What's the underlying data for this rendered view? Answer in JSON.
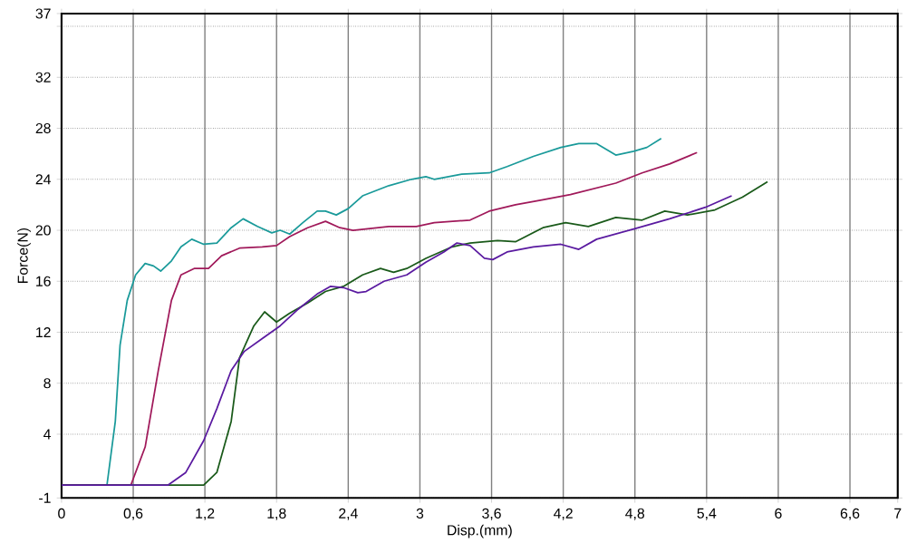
{
  "chart_data": {
    "type": "line",
    "xlabel": "Disp.(mm)",
    "ylabel": "Force(N)",
    "xlim": [
      0,
      7
    ],
    "ylim": [
      -1,
      37
    ],
    "xticks": [
      0,
      {
        "value": 0.6,
        "label": "0,6"
      },
      {
        "value": 1.2,
        "label": "1,2"
      },
      {
        "value": 1.8,
        "label": "1,8"
      },
      {
        "value": 2.4,
        "label": "2,4"
      },
      3,
      {
        "value": 3.6,
        "label": "3,6"
      },
      {
        "value": 4.2,
        "label": "4,2"
      },
      {
        "value": 4.8,
        "label": "4,8"
      },
      {
        "value": 5.4,
        "label": "5,4"
      },
      6,
      {
        "value": 6.6,
        "label": "6,6"
      },
      7
    ],
    "yticks": [
      -1,
      4,
      8,
      12,
      16,
      20,
      24,
      28,
      32,
      {
        "value": 36,
        "label": null
      },
      37
    ],
    "grid": true,
    "series": [
      {
        "color": "#1a9a9a",
        "x": [
          0,
          0.38,
          0.45,
          0.49,
          0.55,
          0.62,
          0.7,
          0.77,
          0.83,
          0.92,
          1.0,
          1.09,
          1.19,
          1.3,
          1.42,
          1.52,
          1.64,
          1.76,
          1.83,
          1.91,
          2.02,
          2.14,
          2.21,
          2.3,
          2.4,
          2.52,
          2.74,
          2.93,
          3.05,
          3.12,
          3.35,
          3.58,
          3.73,
          3.95,
          4.18,
          4.33,
          4.48,
          4.64,
          4.79,
          4.9,
          5.02
        ],
        "values": [
          0,
          0,
          5,
          11,
          14.5,
          16.5,
          17.4,
          17.2,
          16.8,
          17.6,
          18.7,
          19.3,
          18.9,
          19.0,
          20.2,
          20.9,
          20.3,
          19.8,
          20.0,
          19.7,
          20.6,
          21.5,
          21.5,
          21.2,
          21.7,
          22.7,
          23.5,
          24.0,
          24.2,
          24.0,
          24.4,
          24.5,
          25.0,
          25.8,
          26.5,
          26.8,
          26.8,
          25.9,
          26.2,
          26.5,
          27.2
        ]
      },
      {
        "color": "#a0195a",
        "x": [
          0,
          0.58,
          0.7,
          0.81,
          0.92,
          1.0,
          1.11,
          1.23,
          1.34,
          1.49,
          1.68,
          1.8,
          1.91,
          2.06,
          2.21,
          2.33,
          2.44,
          2.74,
          2.97,
          3.12,
          3.42,
          3.58,
          3.8,
          4.03,
          4.26,
          4.64,
          4.86,
          5.09,
          5.32
        ],
        "values": [
          0,
          0,
          3,
          9,
          14.5,
          16.5,
          17.0,
          17.0,
          18.0,
          18.6,
          18.7,
          18.8,
          19.5,
          20.2,
          20.7,
          20.2,
          20.0,
          20.3,
          20.3,
          20.6,
          20.8,
          21.5,
          22.0,
          22.4,
          22.8,
          23.7,
          24.5,
          25.2,
          26.1
        ]
      },
      {
        "color": "#1a5a1a",
        "x": [
          0,
          1.19,
          1.3,
          1.42,
          1.49,
          1.61,
          1.7,
          1.8,
          1.91,
          2.06,
          2.21,
          2.36,
          2.52,
          2.67,
          2.78,
          2.89,
          3.05,
          3.27,
          3.42,
          3.65,
          3.8,
          4.03,
          4.22,
          4.41,
          4.64,
          4.86,
          5.05,
          5.24,
          5.47,
          5.7,
          5.91
        ],
        "values": [
          0,
          0,
          1,
          5,
          10,
          12.5,
          13.6,
          12.8,
          13.5,
          14.3,
          15.2,
          15.6,
          16.5,
          17.0,
          16.7,
          17.0,
          17.8,
          18.7,
          19.0,
          19.2,
          19.1,
          20.2,
          20.6,
          20.3,
          21.0,
          20.8,
          21.5,
          21.2,
          21.6,
          22.6,
          23.8
        ]
      },
      {
        "color": "#5a1aa0",
        "x": [
          0,
          0.89,
          1.04,
          1.19,
          1.3,
          1.42,
          1.53,
          1.68,
          1.83,
          1.98,
          2.14,
          2.25,
          2.36,
          2.48,
          2.55,
          2.7,
          2.89,
          3.05,
          3.2,
          3.31,
          3.42,
          3.54,
          3.61,
          3.73,
          3.95,
          4.18,
          4.33,
          4.48,
          4.79,
          5.09,
          5.39,
          5.61
        ],
        "values": [
          0,
          0,
          1,
          3.5,
          6,
          9,
          10.5,
          11.5,
          12.5,
          13.8,
          15,
          15.6,
          15.5,
          15.1,
          15.2,
          16.0,
          16.5,
          17.5,
          18.3,
          19.0,
          18.8,
          17.8,
          17.7,
          18.3,
          18.7,
          18.9,
          18.5,
          19.3,
          20.1,
          20.9,
          21.8,
          22.7
        ]
      }
    ]
  }
}
